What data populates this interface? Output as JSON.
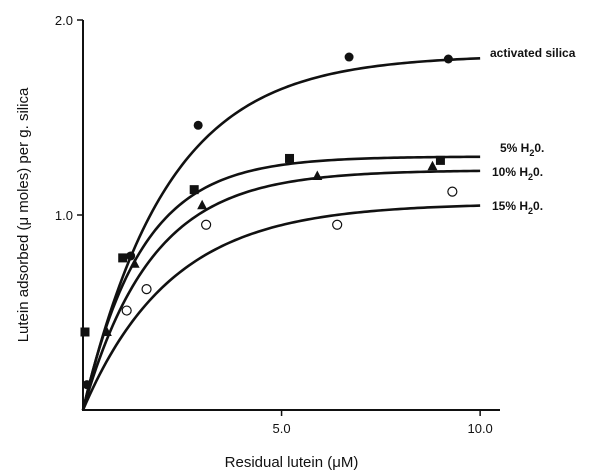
{
  "chart_data": {
    "type": "scatter",
    "title": "",
    "xlabel": "Residual lutein (μM)",
    "ylabel": "Lutein adsorbed (μ moles) per g. silica",
    "xlim": [
      0,
      10.5
    ],
    "ylim": [
      0,
      2.0
    ],
    "x_ticks": [
      5.0,
      10.0
    ],
    "x_tick_labels": [
      "5.0",
      "10.0"
    ],
    "y_ticks": [
      1.0,
      2.0
    ],
    "y_tick_labels": [
      "1.0",
      "2.0"
    ],
    "grid": false,
    "series": [
      {
        "name": "activated silica",
        "label_parts": [
          "activated silica"
        ],
        "marker": "filled-circle",
        "points": [
          [
            0.1,
            0.13
          ],
          [
            1.2,
            0.79
          ],
          [
            2.9,
            1.46
          ],
          [
            6.7,
            1.81
          ],
          [
            9.2,
            1.8
          ]
        ],
        "fit": {
          "vmax": 1.82,
          "k": 0.47
        }
      },
      {
        "name": "5% H2O.",
        "label_parts": [
          "5% H",
          "2",
          "0."
        ],
        "marker": "filled-square",
        "points": [
          [
            0.05,
            0.4
          ],
          [
            1.0,
            0.78
          ],
          [
            2.8,
            1.13
          ],
          [
            5.2,
            1.29
          ],
          [
            9.0,
            1.28
          ]
        ],
        "fit": {
          "vmax": 1.3,
          "k": 0.68
        }
      },
      {
        "name": "10% H2O.",
        "label_parts": [
          "10% H",
          "2",
          "0."
        ],
        "marker": "filled-triangle",
        "points": [
          [
            0.6,
            0.4
          ],
          [
            1.3,
            0.75
          ],
          [
            3.0,
            1.05
          ],
          [
            5.9,
            1.2
          ],
          [
            8.8,
            1.25
          ]
        ],
        "fit": {
          "vmax": 1.23,
          "k": 0.58
        }
      },
      {
        "name": "15% H2O.",
        "label_parts": [
          "15% H",
          "2",
          "0."
        ],
        "marker": "open-circle",
        "points": [
          [
            1.1,
            0.51
          ],
          [
            1.6,
            0.62
          ],
          [
            3.1,
            0.95
          ],
          [
            6.4,
            0.95
          ],
          [
            9.3,
            1.12
          ]
        ],
        "fit": {
          "vmax": 1.06,
          "k": 0.45
        }
      }
    ]
  }
}
